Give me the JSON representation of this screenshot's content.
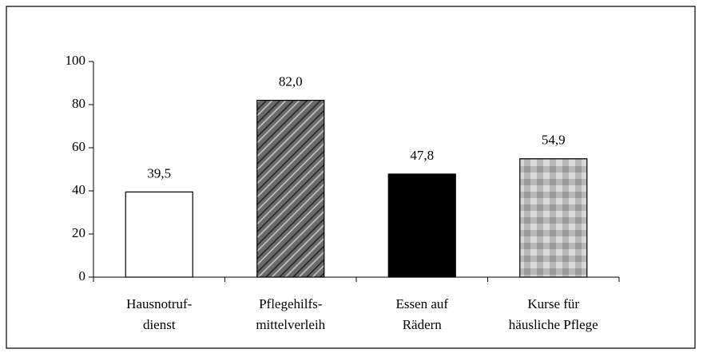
{
  "chart_data": {
    "type": "bar",
    "categories": [
      [
        "Hausnotruf-",
        "dienst"
      ],
      [
        "Pflegehilfs-",
        "mittelverleih"
      ],
      [
        "Essen auf",
        "Rädern"
      ],
      [
        "Kurse für",
        "häusliche Pflege"
      ]
    ],
    "values": [
      39.5,
      82.0,
      47.8,
      54.9
    ],
    "value_labels": [
      "39,5",
      "82,0",
      "47,8",
      "54,9"
    ],
    "colors": [
      "#ffffff",
      "#6a6a6a",
      "#000000",
      "#b8b8b8"
    ],
    "ylim": [
      0,
      100
    ],
    "yticks": [
      0,
      20,
      40,
      60,
      80,
      100
    ],
    "grid": false
  }
}
